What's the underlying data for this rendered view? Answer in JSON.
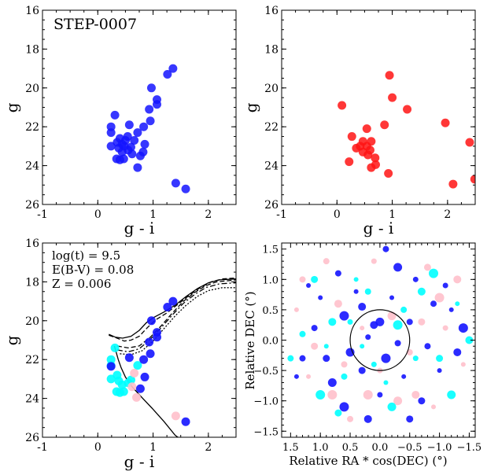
{
  "chart_data": [
    {
      "type": "scatter",
      "panel": "top-left",
      "title": "STEP-0007",
      "xlabel": "g - i",
      "ylabel": "g",
      "xlim": [
        -1,
        2.5
      ],
      "ylim": [
        26,
        16
      ],
      "xticks": [
        -1,
        0,
        1,
        2
      ],
      "yticks": [
        16,
        18,
        20,
        22,
        24,
        26
      ],
      "color": "#1414ff",
      "points": [
        [
          1.36,
          19.0
        ],
        [
          1.26,
          19.3
        ],
        [
          0.97,
          20.0
        ],
        [
          1.07,
          20.6
        ],
        [
          1.07,
          20.85
        ],
        [
          0.93,
          21.1
        ],
        [
          0.31,
          21.4
        ],
        [
          0.95,
          21.7
        ],
        [
          0.57,
          21.9
        ],
        [
          0.24,
          22.0
        ],
        [
          0.83,
          22.0
        ],
        [
          0.24,
          22.3
        ],
        [
          0.72,
          22.3
        ],
        [
          0.54,
          22.5
        ],
        [
          0.4,
          22.6
        ],
        [
          0.66,
          22.7
        ],
        [
          0.5,
          22.7
        ],
        [
          0.35,
          22.8
        ],
        [
          0.44,
          22.9
        ],
        [
          0.85,
          22.9
        ],
        [
          0.24,
          23.0
        ],
        [
          0.48,
          23.0
        ],
        [
          0.6,
          23.05
        ],
        [
          0.38,
          23.1
        ],
        [
          0.55,
          23.2
        ],
        [
          0.44,
          23.3
        ],
        [
          0.82,
          23.3
        ],
        [
          0.62,
          23.4
        ],
        [
          0.77,
          23.5
        ],
        [
          0.34,
          23.65
        ],
        [
          0.4,
          23.7
        ],
        [
          0.47,
          23.65
        ],
        [
          0.72,
          24.1
        ],
        [
          1.41,
          24.9
        ],
        [
          1.59,
          25.2
        ]
      ]
    },
    {
      "type": "scatter",
      "panel": "top-right",
      "xlabel": "g - i",
      "ylabel": "g",
      "xlim": [
        -1,
        2.5
      ],
      "ylim": [
        26,
        16
      ],
      "xticks": [
        -1,
        0,
        1,
        2
      ],
      "yticks": [
        16,
        18,
        20,
        22,
        24,
        26
      ],
      "color": "#ff1414",
      "points": [
        [
          0.95,
          19.35
        ],
        [
          0.09,
          20.9
        ],
        [
          1.0,
          20.5
        ],
        [
          1.27,
          21.1
        ],
        [
          0.54,
          22.1
        ],
        [
          0.86,
          21.9
        ],
        [
          1.96,
          21.8
        ],
        [
          0.27,
          22.5
        ],
        [
          0.47,
          22.75
        ],
        [
          0.62,
          22.75
        ],
        [
          0.42,
          23.0
        ],
        [
          0.54,
          23.0
        ],
        [
          0.35,
          23.1
        ],
        [
          0.6,
          23.2
        ],
        [
          0.47,
          23.3
        ],
        [
          0.56,
          23.45
        ],
        [
          0.69,
          23.6
        ],
        [
          0.22,
          23.8
        ],
        [
          0.7,
          23.95
        ],
        [
          0.62,
          24.1
        ],
        [
          0.93,
          24.4
        ],
        [
          2.4,
          22.8
        ],
        [
          2.1,
          24.95
        ],
        [
          2.49,
          24.7
        ]
      ]
    },
    {
      "type": "scatter",
      "panel": "bottom-left",
      "xlabel": "g - i",
      "ylabel": "g",
      "xlim": [
        -1,
        2.5
      ],
      "ylim": [
        26,
        16
      ],
      "xticks": [
        -1,
        0,
        1,
        2
      ],
      "yticks": [
        16,
        18,
        20,
        22,
        24,
        26
      ],
      "annotations": [
        "log(t) = 9.5",
        "E(B-V) = 0.08",
        "Z = 0.006"
      ],
      "series": [
        {
          "name": "cyan",
          "color": "#00ffff",
          "points": [
            [
              0.31,
              21.4
            ],
            [
              0.24,
              22.0
            ],
            [
              0.24,
              22.3
            ],
            [
              0.35,
              22.8
            ],
            [
              0.24,
              23.0
            ],
            [
              0.38,
              23.1
            ],
            [
              0.44,
              23.3
            ],
            [
              0.34,
              23.65
            ],
            [
              0.4,
              23.7
            ],
            [
              0.72,
              22.3
            ],
            [
              0.6,
              23.05
            ],
            [
              0.55,
              23.2
            ],
            [
              0.47,
              23.65
            ]
          ]
        },
        {
          "name": "pink",
          "color": "#ffc0cb",
          "points": [
            [
              0.62,
              23.4
            ],
            [
              0.7,
              23.95
            ],
            [
              0.66,
              22.7
            ],
            [
              1.41,
              24.9
            ]
          ]
        },
        {
          "name": "blue",
          "color": "#1414ff",
          "points": [
            [
              1.36,
              19.0
            ],
            [
              1.26,
              19.3
            ],
            [
              0.97,
              20.0
            ],
            [
              1.07,
              20.6
            ],
            [
              1.07,
              20.85
            ],
            [
              0.93,
              21.1
            ],
            [
              0.95,
              21.7
            ],
            [
              0.57,
              21.9
            ],
            [
              0.83,
              22.0
            ],
            [
              0.24,
              22.35
            ],
            [
              0.85,
              22.9
            ],
            [
              0.77,
              23.5
            ],
            [
              1.59,
              25.2
            ]
          ]
        }
      ],
      "isochrones": [
        {
          "style": "solid",
          "points": [
            [
              0.2,
              20.7
            ],
            [
              0.32,
              20.85
            ],
            [
              0.45,
              20.9
            ],
            [
              0.6,
              20.8
            ],
            [
              0.75,
              20.5
            ],
            [
              0.88,
              20.1
            ],
            [
              1.0,
              19.85
            ],
            [
              1.2,
              19.55
            ],
            [
              1.4,
              19.2
            ],
            [
              1.6,
              18.75
            ],
            [
              1.8,
              18.35
            ],
            [
              2.0,
              18.05
            ],
            [
              2.2,
              17.9
            ],
            [
              2.5,
              17.85
            ]
          ]
        },
        {
          "style": "solid",
          "points": [
            [
              0.3,
              21.3
            ],
            [
              0.33,
              21.6
            ],
            [
              0.37,
              22.0
            ],
            [
              0.42,
              22.4
            ],
            [
              0.5,
              22.9
            ],
            [
              0.62,
              23.4
            ],
            [
              0.78,
              23.9
            ],
            [
              0.98,
              24.5
            ],
            [
              1.2,
              25.2
            ],
            [
              1.4,
              25.9
            ],
            [
              1.45,
              26.0
            ]
          ]
        },
        {
          "style": "dashed",
          "points": [
            [
              0.2,
              20.75
            ],
            [
              0.35,
              20.9
            ],
            [
              0.48,
              21.05
            ],
            [
              0.6,
              21.0
            ],
            [
              0.75,
              20.8
            ],
            [
              0.9,
              20.35
            ],
            [
              1.05,
              19.95
            ],
            [
              1.25,
              19.6
            ],
            [
              1.45,
              19.15
            ],
            [
              1.65,
              18.7
            ],
            [
              1.85,
              18.3
            ],
            [
              2.05,
              18.0
            ],
            [
              2.25,
              17.85
            ],
            [
              2.5,
              17.8
            ]
          ]
        },
        {
          "style": "dashed",
          "points": [
            [
              0.35,
              21.3
            ],
            [
              0.55,
              21.4
            ],
            [
              0.75,
              21.3
            ],
            [
              0.95,
              20.85
            ],
            [
              1.15,
              20.25
            ],
            [
              1.35,
              19.6
            ],
            [
              1.55,
              19.0
            ],
            [
              1.75,
              18.55
            ],
            [
              1.95,
              18.2
            ],
            [
              2.15,
              18.0
            ],
            [
              2.5,
              17.9
            ]
          ]
        },
        {
          "style": "dashdot",
          "points": [
            [
              0.35,
              21.5
            ],
            [
              0.55,
              21.6
            ],
            [
              0.75,
              21.45
            ],
            [
              0.95,
              20.95
            ],
            [
              1.15,
              20.35
            ],
            [
              1.35,
              19.7
            ],
            [
              1.55,
              19.1
            ],
            [
              1.75,
              18.65
            ],
            [
              1.95,
              18.3
            ],
            [
              2.2,
              18.1
            ],
            [
              2.5,
              18.05
            ]
          ]
        },
        {
          "style": "dotted",
          "points": [
            [
              0.4,
              21.7
            ],
            [
              0.6,
              21.75
            ],
            [
              0.8,
              21.55
            ],
            [
              1.0,
              21.05
            ],
            [
              1.2,
              20.4
            ],
            [
              1.4,
              19.75
            ],
            [
              1.6,
              19.2
            ],
            [
              1.8,
              18.75
            ],
            [
              2.0,
              18.45
            ],
            [
              2.25,
              18.3
            ],
            [
              2.5,
              18.3
            ]
          ]
        }
      ]
    },
    {
      "type": "scatter",
      "panel": "bottom-right",
      "xlabel": "Relative RA * cos(DEC) (°)",
      "ylabel": "Relative DEC (°)",
      "xlim": [
        1.65,
        -1.6
      ],
      "ylim": [
        -1.6,
        1.6
      ],
      "xticks": [
        1.5,
        1.0,
        0.5,
        0.0,
        -0.5,
        -1.0,
        -1.5
      ],
      "xtick_labels": [
        "1.5",
        "1.0",
        "0.5",
        "0.0",
        "−0.5",
        "−1.0",
        "−1.5"
      ],
      "yticks": [
        -1.5,
        -1.0,
        -0.5,
        0.0,
        0.5,
        1.0,
        1.5
      ],
      "ytick_labels": [
        "−1.5",
        "−1.0",
        "−0.5",
        "0.0",
        "0.5",
        "1.0",
        "1.5"
      ],
      "circle": {
        "center": [
          0.0,
          0.0
        ],
        "radius": 0.5
      },
      "series": [
        {
          "name": "blue",
          "color": "#1414ff",
          "points": [
            [
              0.4,
              0.8
            ],
            [
              -0.5,
              0.3
            ],
            [
              0.1,
              0.25
            ],
            [
              0.2,
              0.05
            ],
            [
              -0.1,
              -0.3
            ],
            [
              0.3,
              -0.5
            ],
            [
              -0.4,
              -0.6
            ],
            [
              0.8,
              -0.7
            ],
            [
              -0.9,
              0.6
            ],
            [
              -1.2,
              0.5
            ],
            [
              1.1,
              0.2
            ],
            [
              -1.3,
              -0.2
            ],
            [
              0.0,
              -0.9
            ],
            [
              0.6,
              -1.1
            ],
            [
              -0.7,
              -1.0
            ],
            [
              1.0,
              0.7
            ],
            [
              -0.3,
              1.2
            ],
            [
              0.7,
              1.1
            ],
            [
              -1.0,
              -0.5
            ],
            [
              1.3,
              -0.3
            ],
            [
              0.2,
              -1.3
            ],
            [
              -0.6,
              1.0
            ],
            [
              -1.4,
              0.2
            ],
            [
              0.9,
              -0.3
            ],
            [
              -0.2,
              0.7
            ],
            [
              0.5,
              -0.2
            ],
            [
              -0.8,
              -0.1
            ],
            [
              1.2,
              0.9
            ],
            [
              -0.1,
              1.5
            ],
            [
              0.3,
              0.55
            ],
            [
              -1.1,
              0.9
            ],
            [
              0.6,
              0.4
            ],
            [
              -0.5,
              -1.3
            ],
            [
              1.4,
              -0.6
            ],
            [
              0.0,
              0.3
            ],
            [
              -0.3,
              -0.05
            ]
          ]
        },
        {
          "name": "cyan",
          "color": "#00ffff",
          "points": [
            [
              0.3,
              -0.1
            ],
            [
              -0.4,
              0.5
            ],
            [
              0.8,
              0.3
            ],
            [
              -0.6,
              -0.3
            ],
            [
              1.0,
              -0.9
            ],
            [
              -1.0,
              -0.3
            ],
            [
              0.4,
              1.0
            ],
            [
              -0.2,
              -1.1
            ],
            [
              1.3,
              0.1
            ],
            [
              -1.3,
              0.6
            ],
            [
              0.6,
              -0.6
            ],
            [
              -0.7,
              0.8
            ],
            [
              0.1,
              -0.4
            ],
            [
              -0.9,
              1.1
            ],
            [
              1.1,
              1.0
            ],
            [
              0.9,
              -0.1
            ],
            [
              -1.2,
              -0.9
            ],
            [
              0.2,
              0.8
            ],
            [
              -0.1,
              -0.7
            ],
            [
              1.5,
              -0.3
            ],
            [
              -1.5,
              0.0
            ],
            [
              0.5,
              0.3
            ],
            [
              -0.3,
              0.25
            ],
            [
              0.7,
              -1.2
            ]
          ]
        },
        {
          "name": "pink",
          "color": "#ffc0cb",
          "points": [
            [
              1.2,
              -0.6
            ],
            [
              -0.5,
              -0.2
            ],
            [
              0.7,
              0.6
            ],
            [
              -1.1,
              0.2
            ],
            [
              0.2,
              -0.9
            ],
            [
              -0.8,
              1.2
            ],
            [
              1.4,
              0.5
            ],
            [
              -0.2,
              0.4
            ],
            [
              0.5,
              -1.3
            ],
            [
              -1.4,
              -0.4
            ],
            [
              0.9,
              1.3
            ],
            [
              -0.6,
              -0.9
            ],
            [
              0.1,
              1.3
            ],
            [
              -1.0,
              0.7
            ],
            [
              1.1,
              -0.1
            ],
            [
              0.3,
              0.2
            ],
            [
              -0.3,
              -1.0
            ],
            [
              0.6,
              -0.4
            ],
            [
              -0.9,
              -1.1
            ],
            [
              1.3,
              1.0
            ],
            [
              -1.3,
              1.0
            ],
            [
              0.0,
              -0.5
            ],
            [
              0.8,
              -0.9
            ],
            [
              -0.7,
              0.3
            ]
          ]
        }
      ]
    }
  ]
}
